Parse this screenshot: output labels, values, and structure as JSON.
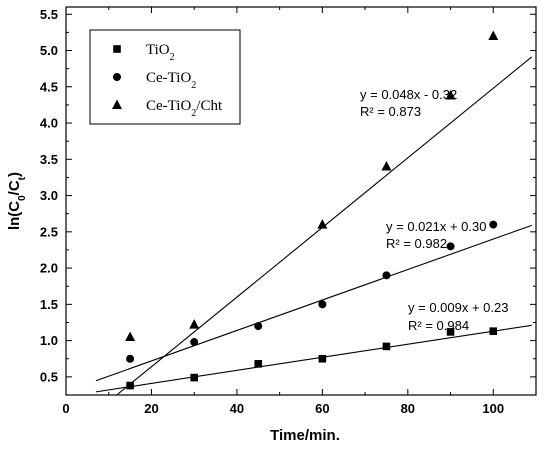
{
  "chart_data": {
    "type": "scatter",
    "xlabel": "Time/min.",
    "ylabel_parts": [
      "ln(C",
      "0",
      "/C",
      "t",
      ")"
    ],
    "xlim": [
      0,
      110
    ],
    "ylim": [
      0.25,
      5.6
    ],
    "x_ticks": [
      0,
      20,
      40,
      60,
      80,
      100
    ],
    "y_ticks": [
      0.5,
      1.0,
      1.5,
      2.0,
      2.5,
      3.0,
      3.5,
      4.0,
      4.5,
      5.0,
      5.5
    ],
    "x_tick_labels": [
      "0",
      "20",
      "40",
      "60",
      "80",
      "100"
    ],
    "y_tick_labels": [
      "0.5",
      "1.0",
      "1.5",
      "2.0",
      "2.5",
      "3.0",
      "3.5",
      "4.0",
      "4.5",
      "5.0",
      "5.5"
    ],
    "legend_position": "top-left",
    "grid": false,
    "series": [
      {
        "name_parts": [
          "TiO",
          "2",
          ""
        ],
        "marker": "square",
        "x": [
          15,
          30,
          45,
          60,
          75,
          90,
          100
        ],
        "y": [
          0.38,
          0.49,
          0.68,
          0.75,
          0.92,
          1.12,
          1.13
        ],
        "fit": {
          "slope": 0.009,
          "intercept": 0.23,
          "x_range": [
            7,
            109
          ]
        },
        "equation": "y = 0.009x + 0.23",
        "r2": "R² = 0.984"
      },
      {
        "name_parts": [
          "Ce-TiO",
          "2",
          ""
        ],
        "marker": "circle",
        "x": [
          15,
          30,
          45,
          60,
          75,
          90,
          100
        ],
        "y": [
          0.75,
          0.98,
          1.2,
          1.5,
          1.9,
          2.3,
          2.6
        ],
        "fit": {
          "slope": 0.021,
          "intercept": 0.3,
          "x_range": [
            7,
            109
          ]
        },
        "equation": "y = 0.021x + 0.30",
        "r2": "R² = 0.982"
      },
      {
        "name_parts": [
          "Ce-TiO",
          "2",
          "/Cht"
        ],
        "marker": "triangle",
        "x": [
          15,
          30,
          60,
          75,
          90,
          100
        ],
        "y": [
          1.05,
          1.22,
          2.6,
          3.4,
          4.38,
          5.2
        ],
        "fit": {
          "slope": 0.048,
          "intercept": -0.32,
          "x_range": [
            11.8,
            109
          ]
        },
        "equation": "y = 0.048x - 0.32",
        "r2": "R² = 0.873"
      }
    ]
  }
}
